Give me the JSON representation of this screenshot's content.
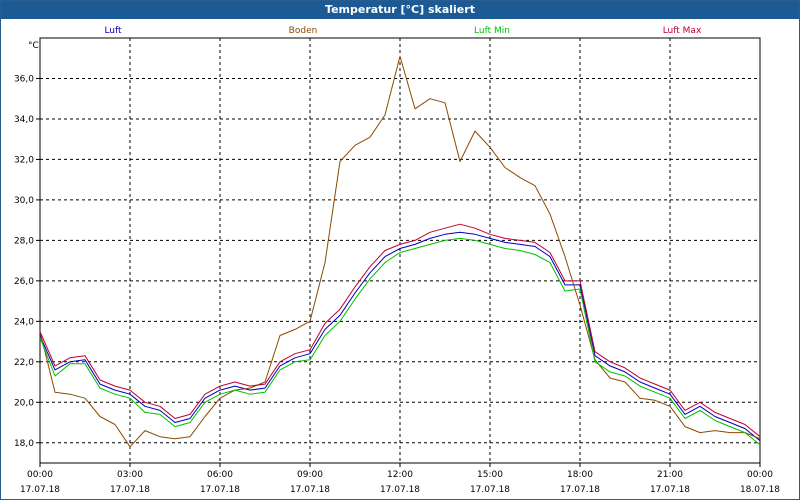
{
  "window": {
    "title": "Temperatur [°C] skaliert"
  },
  "colors": {
    "title_bar": "#1c5a96",
    "grid": "#000000",
    "axis": "#000000"
  },
  "chart_data": {
    "type": "line",
    "title": "Temperatur [°C] skaliert",
    "ylabel": "°C",
    "xlabel": "",
    "ylim": [
      17,
      38
    ],
    "xlim": [
      0,
      24
    ],
    "grid": true,
    "legend_position": "top",
    "y_ticks": [
      {
        "value": 18,
        "label": "18,0"
      },
      {
        "value": 20,
        "label": "20,0"
      },
      {
        "value": 22,
        "label": "22,0"
      },
      {
        "value": 24,
        "label": "24,0"
      },
      {
        "value": 26,
        "label": "26,0"
      },
      {
        "value": 28,
        "label": "28,0"
      },
      {
        "value": 30,
        "label": "30,0"
      },
      {
        "value": 32,
        "label": "32,0"
      },
      {
        "value": 34,
        "label": "34,0"
      },
      {
        "value": 36,
        "label": "36,0"
      }
    ],
    "x_ticks": [
      {
        "value": 0,
        "time": "00:00",
        "date": "17.07.18"
      },
      {
        "value": 3,
        "time": "03:00",
        "date": "17.07.18"
      },
      {
        "value": 6,
        "time": "06:00",
        "date": "17.07.18"
      },
      {
        "value": 9,
        "time": "09:00",
        "date": "17.07.18"
      },
      {
        "value": 12,
        "time": "12:00",
        "date": "17.07.18"
      },
      {
        "value": 15,
        "time": "15:00",
        "date": "17.07.18"
      },
      {
        "value": 18,
        "time": "18:00",
        "date": "17.07.18"
      },
      {
        "value": 21,
        "time": "21:00",
        "date": "17.07.18"
      },
      {
        "value": 24,
        "time": "00:00",
        "date": "18.07.18"
      }
    ],
    "x": [
      0,
      0.5,
      1,
      1.5,
      2,
      2.5,
      3,
      3.5,
      4,
      4.5,
      5,
      5.5,
      6,
      6.5,
      7,
      7.5,
      8,
      8.5,
      9,
      9.5,
      10,
      10.5,
      11,
      11.5,
      12,
      12.5,
      13,
      13.5,
      14,
      14.5,
      15,
      15.5,
      16,
      16.5,
      17,
      17.5,
      18,
      18.5,
      19,
      19.5,
      20,
      20.5,
      21,
      21.5,
      22,
      22.5,
      23,
      23.5,
      24
    ],
    "series": [
      {
        "name": "Luft",
        "color": "#0000c0",
        "values": [
          23.3,
          21.6,
          22.0,
          22.1,
          20.9,
          20.6,
          20.4,
          19.8,
          19.6,
          19.0,
          19.2,
          20.2,
          20.6,
          20.8,
          20.6,
          20.7,
          21.8,
          22.2,
          22.4,
          23.6,
          24.3,
          25.4,
          26.4,
          27.2,
          27.6,
          27.8,
          28.1,
          28.3,
          28.4,
          28.3,
          28.1,
          27.9,
          27.8,
          27.7,
          27.2,
          25.8,
          25.8,
          22.3,
          21.8,
          21.5,
          21.0,
          20.7,
          20.4,
          19.4,
          19.8,
          19.3,
          19.0,
          18.7,
          18.1
        ]
      },
      {
        "name": "Boden",
        "color": "#8b4a00",
        "values": [
          23.5,
          20.5,
          20.4,
          20.2,
          19.3,
          18.9,
          17.8,
          18.6,
          18.3,
          18.2,
          18.3,
          19.3,
          20.2,
          20.6,
          20.7,
          21.0,
          23.3,
          23.6,
          24.0,
          26.9,
          31.9,
          32.7,
          33.1,
          34.2,
          37.1,
          34.5,
          35.0,
          34.8,
          31.9,
          33.4,
          32.6,
          31.6,
          31.1,
          30.7,
          29.3,
          27.2,
          24.8,
          22.1,
          21.2,
          21.0,
          20.2,
          20.1,
          19.8,
          18.8,
          18.5,
          18.6,
          18.5,
          18.5,
          18.2
        ]
      },
      {
        "name": "Luft Min",
        "color": "#00c000",
        "values": [
          23.2,
          21.3,
          21.9,
          21.9,
          20.7,
          20.4,
          20.2,
          19.5,
          19.4,
          18.8,
          19.0,
          20.0,
          20.4,
          20.6,
          20.4,
          20.5,
          21.6,
          22.0,
          22.1,
          23.3,
          24.0,
          25.1,
          26.1,
          26.9,
          27.4,
          27.6,
          27.8,
          28.0,
          28.1,
          28.0,
          27.8,
          27.6,
          27.5,
          27.3,
          26.9,
          25.5,
          25.6,
          22.0,
          21.5,
          21.3,
          20.8,
          20.5,
          20.2,
          19.2,
          19.6,
          19.1,
          18.8,
          18.5,
          17.9
        ]
      },
      {
        "name": "Luft Max",
        "color": "#c00030",
        "values": [
          23.5,
          21.8,
          22.2,
          22.3,
          21.1,
          20.8,
          20.6,
          20.0,
          19.8,
          19.2,
          19.4,
          20.4,
          20.8,
          21.0,
          20.8,
          20.9,
          22.0,
          22.4,
          22.6,
          23.9,
          24.6,
          25.7,
          26.7,
          27.5,
          27.8,
          28.0,
          28.4,
          28.6,
          28.8,
          28.6,
          28.3,
          28.1,
          28.0,
          27.9,
          27.4,
          26.0,
          26.0,
          22.5,
          22.0,
          21.7,
          21.2,
          20.9,
          20.6,
          19.6,
          20.0,
          19.5,
          19.2,
          18.9,
          18.3
        ]
      }
    ]
  }
}
